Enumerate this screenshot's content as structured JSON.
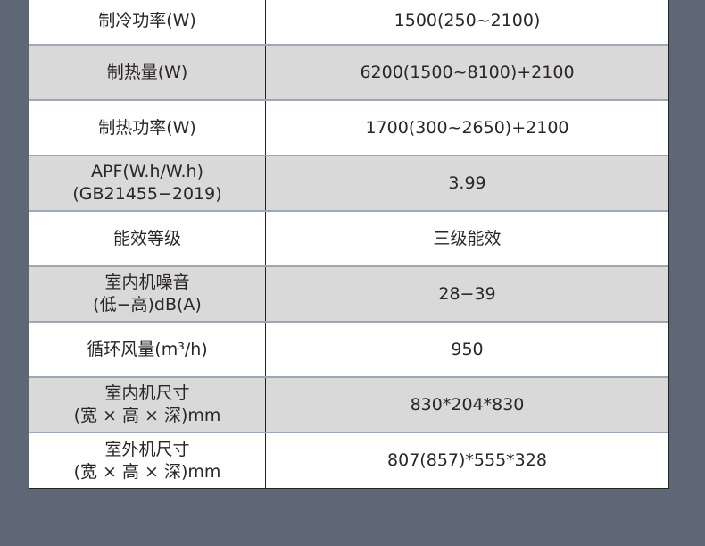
{
  "rows": [
    {
      "label": "制冷功率(W)",
      "value": "1500(250~2100)"
    },
    {
      "label": "制热量(W)",
      "value": "6200(1500~8100)+2100"
    },
    {
      "label": "制热功率(W)",
      "value": "1700(300~2650)+2100"
    },
    {
      "label": "APF(W.h/W.h)\n(GB21455−2019)",
      "value": "3.99"
    },
    {
      "label": "能效等级",
      "value": "三级能效"
    },
    {
      "label": "室内机噪音\n(低−高)dB(A)",
      "value": "28−39"
    },
    {
      "label": "循环风量(m³/h)",
      "value": "950"
    },
    {
      "label": "室内机尺寸\n(宽 × 高 × 深)mm",
      "value": "830*204*830"
    },
    {
      "label": "室外机尺寸\n(宽 × 高 × 深)mm",
      "value": "807(857)*555*328"
    }
  ],
  "colors": {
    "background": "#5d6776",
    "row_alt": "#d9d9d9",
    "row": "#ffffff",
    "text": "#2b2624"
  }
}
